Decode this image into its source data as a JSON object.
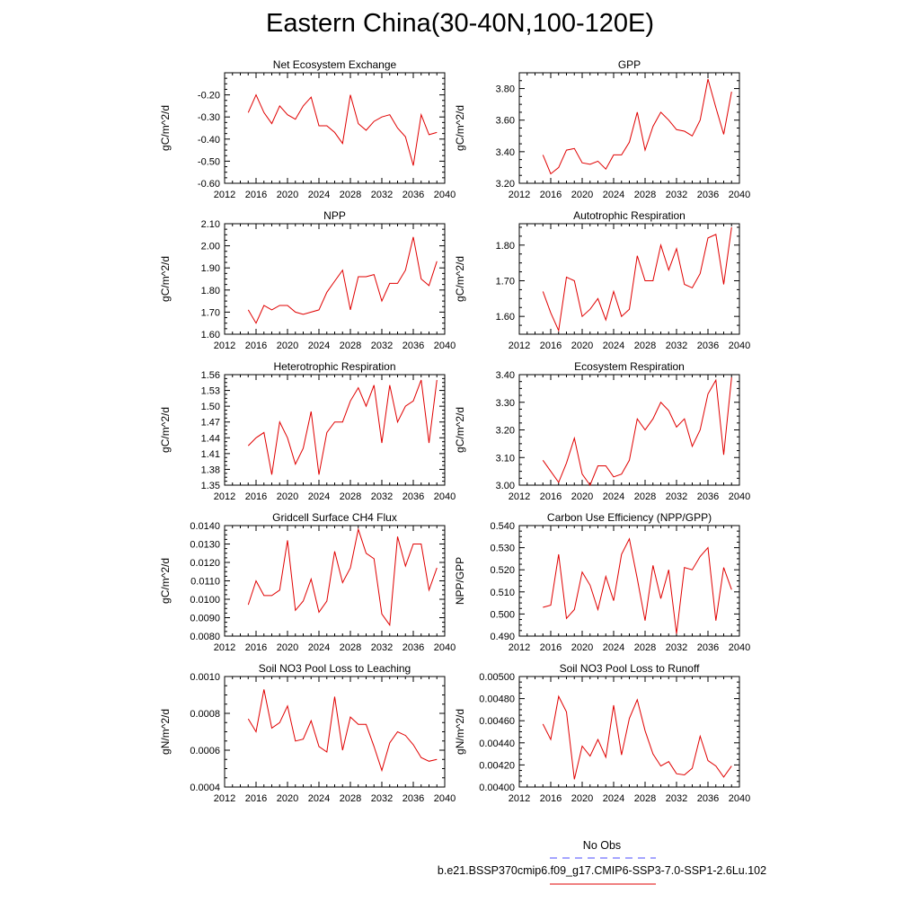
{
  "title": "Eastern China(30-40N,100-120E)",
  "colors": {
    "series": "#e00000",
    "obs": "#4b4bff",
    "axis": "#000000"
  },
  "legend": {
    "obs_label": "No Obs",
    "model_label": "b.e21.BSSP370cmip6.f09_g17.CMIP6-SSP3-7.0-SSP1-2.6Lu.102"
  },
  "chart_data": [
    {
      "type": "line",
      "title": "Net Ecosystem Exchange",
      "ylabel": "gC/m^2/d",
      "xlim": [
        2012,
        2040
      ],
      "ylim": [
        -0.6,
        -0.1
      ],
      "xticks": [
        2012,
        2016,
        2020,
        2024,
        2028,
        2032,
        2036,
        2040
      ],
      "yticks": [
        -0.6,
        -0.5,
        -0.4,
        -0.3,
        -0.2
      ],
      "ytick_labels": [
        "-0.60",
        "-0.50",
        "-0.40",
        "-0.30",
        "-0.20"
      ],
      "x": [
        2015,
        2016,
        2017,
        2018,
        2019,
        2020,
        2021,
        2022,
        2023,
        2024,
        2025,
        2026,
        2027,
        2028,
        2029,
        2030,
        2031,
        2032,
        2033,
        2034,
        2035,
        2036,
        2037,
        2038,
        2039
      ],
      "values": [
        -0.28,
        -0.2,
        -0.28,
        -0.33,
        -0.25,
        -0.29,
        -0.31,
        -0.25,
        -0.21,
        -0.34,
        -0.34,
        -0.37,
        -0.42,
        -0.2,
        -0.33,
        -0.36,
        -0.32,
        -0.3,
        -0.29,
        -0.35,
        -0.39,
        -0.52,
        -0.29,
        -0.38,
        -0.37
      ]
    },
    {
      "type": "line",
      "title": "GPP",
      "ylabel": "gC/m^2/d",
      "xlim": [
        2012,
        2040
      ],
      "ylim": [
        3.2,
        3.9
      ],
      "xticks": [
        2012,
        2016,
        2020,
        2024,
        2028,
        2032,
        2036,
        2040
      ],
      "yticks": [
        3.2,
        3.4,
        3.6,
        3.8
      ],
      "ytick_labels": [
        "3.20",
        "3.40",
        "3.60",
        "3.80"
      ],
      "x": [
        2015,
        2016,
        2017,
        2018,
        2019,
        2020,
        2021,
        2022,
        2023,
        2024,
        2025,
        2026,
        2027,
        2028,
        2029,
        2030,
        2031,
        2032,
        2033,
        2034,
        2035,
        2036,
        2037,
        2038,
        2039
      ],
      "values": [
        3.38,
        3.26,
        3.3,
        3.41,
        3.42,
        3.33,
        3.32,
        3.34,
        3.29,
        3.38,
        3.38,
        3.46,
        3.65,
        3.41,
        3.56,
        3.65,
        3.6,
        3.54,
        3.53,
        3.5,
        3.6,
        3.86,
        3.68,
        3.51,
        3.78
      ]
    },
    {
      "type": "line",
      "title": "NPP",
      "ylabel": "gC/m^2/d",
      "xlim": [
        2012,
        2040
      ],
      "ylim": [
        1.6,
        2.1
      ],
      "xticks": [
        2012,
        2016,
        2020,
        2024,
        2028,
        2032,
        2036,
        2040
      ],
      "yticks": [
        1.6,
        1.7,
        1.8,
        1.9,
        2.0,
        2.1
      ],
      "ytick_labels": [
        "1.60",
        "1.70",
        "1.80",
        "1.90",
        "2.00",
        "2.10"
      ],
      "x": [
        2015,
        2016,
        2017,
        2018,
        2019,
        2020,
        2021,
        2022,
        2023,
        2024,
        2025,
        2026,
        2027,
        2028,
        2029,
        2030,
        2031,
        2032,
        2033,
        2034,
        2035,
        2036,
        2037,
        2038,
        2039
      ],
      "values": [
        1.71,
        1.65,
        1.73,
        1.71,
        1.73,
        1.73,
        1.7,
        1.69,
        1.7,
        1.71,
        1.79,
        1.84,
        1.89,
        1.71,
        1.86,
        1.86,
        1.87,
        1.75,
        1.83,
        1.83,
        1.89,
        2.04,
        1.85,
        1.82,
        1.93
      ]
    },
    {
      "type": "line",
      "title": "Autotrophic Respiration",
      "ylabel": "gC/m^2/d",
      "xlim": [
        2012,
        2040
      ],
      "ylim": [
        1.55,
        1.86
      ],
      "xticks": [
        2012,
        2016,
        2020,
        2024,
        2028,
        2032,
        2036,
        2040
      ],
      "yticks": [
        1.6,
        1.7,
        1.8
      ],
      "ytick_labels": [
        "1.60",
        "1.70",
        "1.80"
      ],
      "x": [
        2015,
        2016,
        2017,
        2018,
        2019,
        2020,
        2021,
        2022,
        2023,
        2024,
        2025,
        2026,
        2027,
        2028,
        2029,
        2030,
        2031,
        2032,
        2033,
        2034,
        2035,
        2036,
        2037,
        2038,
        2039
      ],
      "values": [
        1.67,
        1.61,
        1.56,
        1.71,
        1.7,
        1.6,
        1.62,
        1.65,
        1.59,
        1.67,
        1.6,
        1.62,
        1.77,
        1.7,
        1.7,
        1.8,
        1.73,
        1.79,
        1.69,
        1.68,
        1.72,
        1.82,
        1.83,
        1.69,
        1.85
      ]
    },
    {
      "type": "line",
      "title": "Heterotrophic Respiration",
      "ylabel": "gC/m^2/d",
      "xlim": [
        2012,
        2040
      ],
      "ylim": [
        1.35,
        1.56
      ],
      "xticks": [
        2012,
        2016,
        2020,
        2024,
        2028,
        2032,
        2036,
        2040
      ],
      "yticks": [
        1.35,
        1.38,
        1.41,
        1.44,
        1.47,
        1.5,
        1.53,
        1.56
      ],
      "ytick_labels": [
        "1.35",
        "1.38",
        "1.41",
        "1.44",
        "1.47",
        "1.50",
        "1.53",
        "1.56"
      ],
      "x": [
        2015,
        2016,
        2017,
        2018,
        2019,
        2020,
        2021,
        2022,
        2023,
        2024,
        2025,
        2026,
        2027,
        2028,
        2029,
        2030,
        2031,
        2032,
        2033,
        2034,
        2035,
        2036,
        2037,
        2038,
        2039
      ],
      "values": [
        1.425,
        1.44,
        1.45,
        1.37,
        1.47,
        1.44,
        1.39,
        1.42,
        1.49,
        1.37,
        1.45,
        1.47,
        1.47,
        1.51,
        1.535,
        1.5,
        1.54,
        1.43,
        1.54,
        1.47,
        1.5,
        1.51,
        1.55,
        1.43,
        1.55
      ]
    },
    {
      "type": "line",
      "title": "Ecosystem Respiration",
      "ylabel": "gC/m^2/d",
      "xlim": [
        2012,
        2040
      ],
      "ylim": [
        3.0,
        3.4
      ],
      "xticks": [
        2012,
        2016,
        2020,
        2024,
        2028,
        2032,
        2036,
        2040
      ],
      "yticks": [
        3.0,
        3.1,
        3.2,
        3.3,
        3.4
      ],
      "ytick_labels": [
        "3.00",
        "3.10",
        "3.20",
        "3.30",
        "3.40"
      ],
      "x": [
        2015,
        2016,
        2017,
        2018,
        2019,
        2020,
        2021,
        2022,
        2023,
        2024,
        2025,
        2026,
        2027,
        2028,
        2029,
        2030,
        2031,
        2032,
        2033,
        2034,
        2035,
        2036,
        2037,
        2038,
        2039
      ],
      "values": [
        3.09,
        3.05,
        3.01,
        3.08,
        3.17,
        3.04,
        3.0,
        3.07,
        3.07,
        3.03,
        3.04,
        3.09,
        3.24,
        3.2,
        3.24,
        3.3,
        3.27,
        3.21,
        3.24,
        3.14,
        3.2,
        3.33,
        3.38,
        3.11,
        3.39
      ]
    },
    {
      "type": "line",
      "title": "Gridcell Surface CH4 Flux",
      "ylabel": "gC/m^2/d",
      "xlim": [
        2012,
        2040
      ],
      "ylim": [
        0.008,
        0.014
      ],
      "xticks": [
        2012,
        2016,
        2020,
        2024,
        2028,
        2032,
        2036,
        2040
      ],
      "yticks": [
        0.008,
        0.009,
        0.01,
        0.011,
        0.012,
        0.013,
        0.014
      ],
      "ytick_labels": [
        "0.0080",
        "0.0090",
        "0.0100",
        "0.0110",
        "0.0120",
        "0.0130",
        "0.0140"
      ],
      "x": [
        2015,
        2016,
        2017,
        2018,
        2019,
        2020,
        2021,
        2022,
        2023,
        2024,
        2025,
        2026,
        2027,
        2028,
        2029,
        2030,
        2031,
        2032,
        2033,
        2034,
        2035,
        2036,
        2037,
        2038,
        2039
      ],
      "values": [
        0.0097,
        0.011,
        0.0102,
        0.0102,
        0.0105,
        0.0132,
        0.0094,
        0.0099,
        0.0111,
        0.0093,
        0.0099,
        0.0126,
        0.0109,
        0.0117,
        0.0138,
        0.0125,
        0.0122,
        0.0092,
        0.0086,
        0.0134,
        0.0118,
        0.013,
        0.013,
        0.0105,
        0.0117
      ]
    },
    {
      "type": "line",
      "title": "Carbon Use Efficiency (NPP/GPP)",
      "ylabel": "NPP/GPP",
      "xlim": [
        2012,
        2040
      ],
      "ylim": [
        0.49,
        0.54
      ],
      "xticks": [
        2012,
        2016,
        2020,
        2024,
        2028,
        2032,
        2036,
        2040
      ],
      "yticks": [
        0.49,
        0.5,
        0.51,
        0.52,
        0.53,
        0.54
      ],
      "ytick_labels": [
        "0.490",
        "0.500",
        "0.510",
        "0.520",
        "0.530",
        "0.540"
      ],
      "x": [
        2015,
        2016,
        2017,
        2018,
        2019,
        2020,
        2021,
        2022,
        2023,
        2024,
        2025,
        2026,
        2027,
        2028,
        2029,
        2030,
        2031,
        2032,
        2033,
        2034,
        2035,
        2036,
        2037,
        2038,
        2039
      ],
      "values": [
        0.503,
        0.504,
        0.527,
        0.498,
        0.502,
        0.519,
        0.513,
        0.502,
        0.517,
        0.506,
        0.527,
        0.534,
        0.516,
        0.497,
        0.522,
        0.507,
        0.52,
        0.491,
        0.521,
        0.52,
        0.526,
        0.53,
        0.497,
        0.521,
        0.511
      ]
    },
    {
      "type": "line",
      "title": "Soil NO3 Pool Loss to Leaching",
      "ylabel": "gN/m^2/d",
      "xlim": [
        2012,
        2040
      ],
      "ylim": [
        0.0004,
        0.001
      ],
      "xticks": [
        2012,
        2016,
        2020,
        2024,
        2028,
        2032,
        2036,
        2040
      ],
      "yticks": [
        0.0004,
        0.0006,
        0.0008,
        0.001
      ],
      "ytick_labels": [
        "0.0004",
        "0.0006",
        "0.0008",
        "0.0010"
      ],
      "x": [
        2015,
        2016,
        2017,
        2018,
        2019,
        2020,
        2021,
        2022,
        2023,
        2024,
        2025,
        2026,
        2027,
        2028,
        2029,
        2030,
        2031,
        2032,
        2033,
        2034,
        2035,
        2036,
        2037,
        2038,
        2039
      ],
      "values": [
        0.00077,
        0.0007,
        0.00093,
        0.00072,
        0.00075,
        0.00084,
        0.00065,
        0.00066,
        0.00076,
        0.00062,
        0.00059,
        0.00089,
        0.0006,
        0.00078,
        0.00074,
        0.00074,
        0.00062,
        0.00049,
        0.00064,
        0.0007,
        0.00068,
        0.00063,
        0.00056,
        0.00054,
        0.00055
      ]
    },
    {
      "type": "line",
      "title": "Soil NO3 Pool Loss to Runoff",
      "ylabel": "gN/m^2/d",
      "xlim": [
        2012,
        2040
      ],
      "ylim": [
        0.004,
        0.005
      ],
      "xticks": [
        2012,
        2016,
        2020,
        2024,
        2028,
        2032,
        2036,
        2040
      ],
      "yticks": [
        0.004,
        0.0042,
        0.0044,
        0.0046,
        0.0048,
        0.005
      ],
      "ytick_labels": [
        "0.00400",
        "0.00420",
        "0.00440",
        "0.00460",
        "0.00480",
        "0.00500"
      ],
      "x": [
        2015,
        2016,
        2017,
        2018,
        2019,
        2020,
        2021,
        2022,
        2023,
        2024,
        2025,
        2026,
        2027,
        2028,
        2029,
        2030,
        2031,
        2032,
        2033,
        2034,
        2035,
        2036,
        2037,
        2038,
        2039
      ],
      "values": [
        0.00457,
        0.00443,
        0.00482,
        0.00468,
        0.00407,
        0.00437,
        0.00428,
        0.00443,
        0.00427,
        0.00474,
        0.00429,
        0.00462,
        0.00479,
        0.00451,
        0.0043,
        0.00419,
        0.00423,
        0.00412,
        0.00411,
        0.00417,
        0.00446,
        0.00424,
        0.00419,
        0.00409,
        0.00419
      ]
    }
  ]
}
